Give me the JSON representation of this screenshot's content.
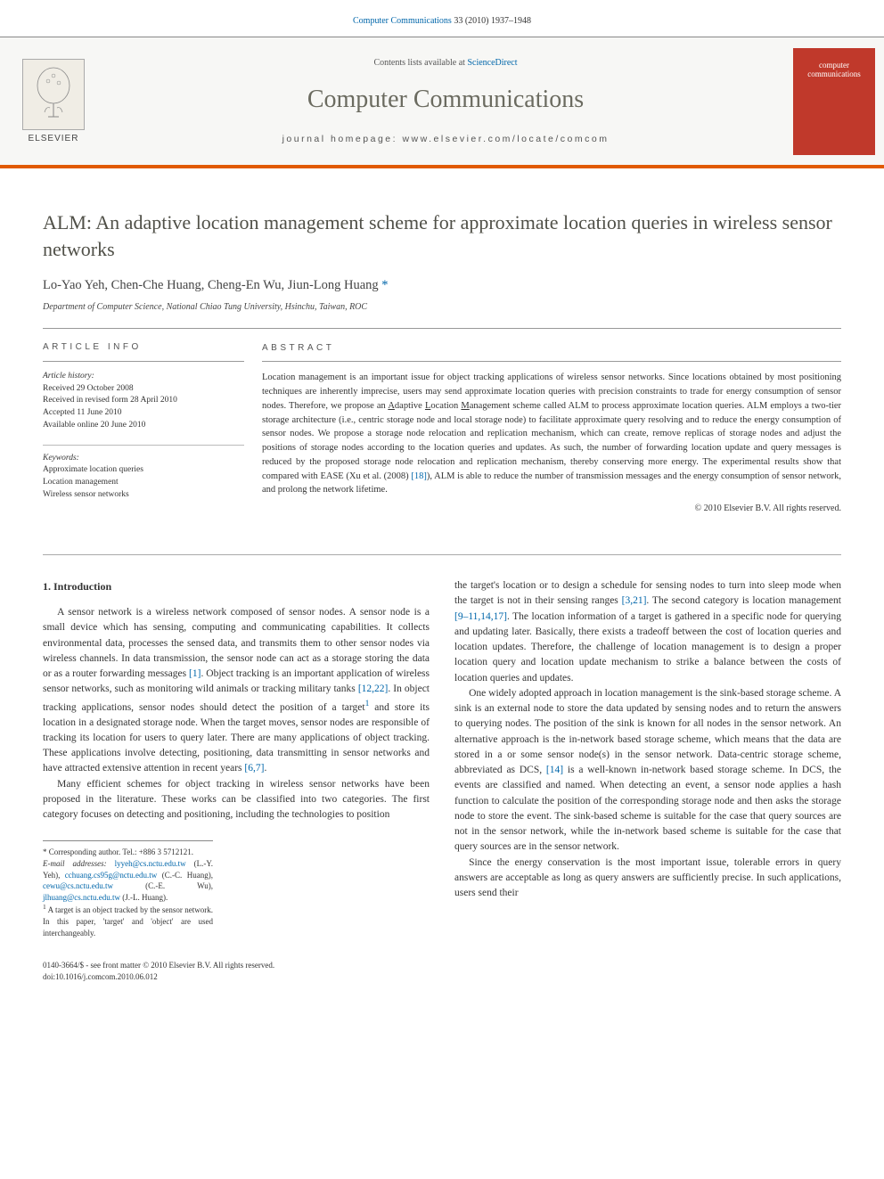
{
  "header": {
    "citation_journal": "Computer Communications",
    "citation_pages": "33 (2010) 1937–1948"
  },
  "masthead": {
    "publisher": "ELSEVIER",
    "contents_prefix": "Contents lists available at ",
    "contents_link": "ScienceDirect",
    "journal_title": "Computer Communications",
    "homepage_label": "journal homepage: ",
    "homepage_url": "www.elsevier.com/locate/comcom",
    "cover_text_1": "computer",
    "cover_text_2": "communications"
  },
  "article": {
    "title": "ALM: An adaptive location management scheme for approximate location queries in wireless sensor networks",
    "authors_plain": "Lo-Yao Yeh, Chen-Che Huang, Cheng-En Wu, Jiun-Long Huang",
    "corr_mark": "*",
    "affiliation": "Department of Computer Science, National Chiao Tung University, Hsinchu, Taiwan, ROC"
  },
  "info": {
    "head": "ARTICLE INFO",
    "history_label": "Article history:",
    "received": "Received 29 October 2008",
    "revised": "Received in revised form 28 April 2010",
    "accepted": "Accepted 11 June 2010",
    "online": "Available online 20 June 2010",
    "keywords_label": "Keywords:",
    "kw1": "Approximate location queries",
    "kw2": "Location management",
    "kw3": "Wireless sensor networks"
  },
  "abstract": {
    "head": "ABSTRACT",
    "text": "Location management is an important issue for object tracking applications of wireless sensor networks. Since locations obtained by most positioning techniques are inherently imprecise, users may send approximate location queries with precision constraints to trade for energy consumption of sensor nodes. Therefore, we propose an Adaptive Location Management scheme called ALM to process approximate location queries. ALM employs a two-tier storage architecture (i.e., centric storage node and local storage node) to facilitate approximate query resolving and to reduce the energy consumption of sensor nodes. We propose a storage node relocation and replication mechanism, which can create, remove replicas of storage nodes and adjust the positions of storage nodes according to the location queries and updates. As such, the number of forwarding location update and query messages is reduced by the proposed storage node relocation and replication mechanism, thereby conserving more energy. The experimental results show that compared with EASE (Xu et al. (2008) [18]), ALM is able to reduce the number of transmission messages and the energy consumption of sensor network, and prolong the network lifetime.",
    "copyright": "© 2010 Elsevier B.V. All rights reserved."
  },
  "section1": {
    "head": "1. Introduction",
    "p1_a": "A sensor network is a wireless network composed of sensor nodes. A sensor node is a small device which has sensing, computing and communicating capabilities. It collects environmental data, processes the sensed data, and transmits them to other sensor nodes via wireless channels. In data transmission, the sensor node can act as a storage storing the data or as a router forwarding messages ",
    "ref1": "[1]",
    "p1_b": ". Object tracking is an important application of wireless sensor networks, such as monitoring wild animals or tracking military tanks ",
    "ref12_22": "[12,22]",
    "p1_c": ". In object tracking applications, sensor nodes should detect the position of a target",
    "fnmark": "1",
    "p1_d": " and store its location in a designated storage node. When the target moves, sensor nodes are responsible of tracking its location for users to query later. There are many applications of object tracking. These applications involve detecting, positioning, data transmitting in sensor networks and have attracted extensive attention in recent years ",
    "ref6_7": "[6,7]",
    "p1_e": ".",
    "p2_a": "Many efficient schemes for object tracking in wireless sensor networks have been proposed in the literature. These works can be classified into two categories. The first category focuses on detecting and positioning, including the technologies to position",
    "col2_a": "the target's location or to design a schedule for sensing nodes to turn into sleep mode when the target is not in their sensing ranges ",
    "ref3_21": "[3,21]",
    "col2_b": ". The second category is location management ",
    "ref9etc": "[9–11,14,17]",
    "col2_c": ". The location information of a target is gathered in a specific node for querying and updating later. Basically, there exists a tradeoff between the cost of location queries and location updates. Therefore, the challenge of location management is to design a proper location query and location update mechanism to strike a balance between the costs of location queries and updates.",
    "p3_a": "One widely adopted approach in location management is the sink-based storage scheme. A sink is an external node to store the data updated by sensing nodes and to return the answers to querying nodes. The position of the sink is known for all nodes in the sensor network. An alternative approach is the in-network based storage scheme, which means that the data are stored in a or some sensor node(s) in the sensor network. Data-centric storage scheme, abbreviated as DCS, ",
    "ref14": "[14]",
    "p3_b": " is a well-known in-network based storage scheme. In DCS, the events are classified and named. When detecting an event, a sensor node applies a hash function to calculate the position of the corresponding storage node and then asks the storage node to store the event. The sink-based scheme is suitable for the case that query sources are not in the sensor network, while the in-network based scheme is suitable for the case that query sources are in the sensor network.",
    "p4": "Since the energy conservation is the most important issue, tolerable errors in query answers are acceptable as long as query answers are sufficiently precise. In such applications, users send their"
  },
  "footnotes": {
    "corr": "* Corresponding author. Tel.: +886 3 5712121.",
    "email_label": "E-mail addresses:",
    "e1": "lyyeh@cs.nctu.edu.tw",
    "n1": " (L.-Y. Yeh), ",
    "e2": "cchuang.cs95g@nctu.edu.tw",
    "n2": " (C.-C. Huang), ",
    "e3": "cewu@cs.nctu.edu.tw",
    "n3": " (C.-E. Wu), ",
    "e4": "jlhuang@cs.nctu.edu.tw",
    "n4": " (J.-L. Huang).",
    "fn1": "A target is an object tracked by the sensor network. In this paper, 'target' and 'object' are used interchangeably.",
    "fn1_mark": "1"
  },
  "strip": {
    "line1": "0140-3664/$ - see front matter © 2010 Elsevier B.V. All rights reserved.",
    "line2": "doi:10.1016/j.comcom.2010.06.012"
  }
}
